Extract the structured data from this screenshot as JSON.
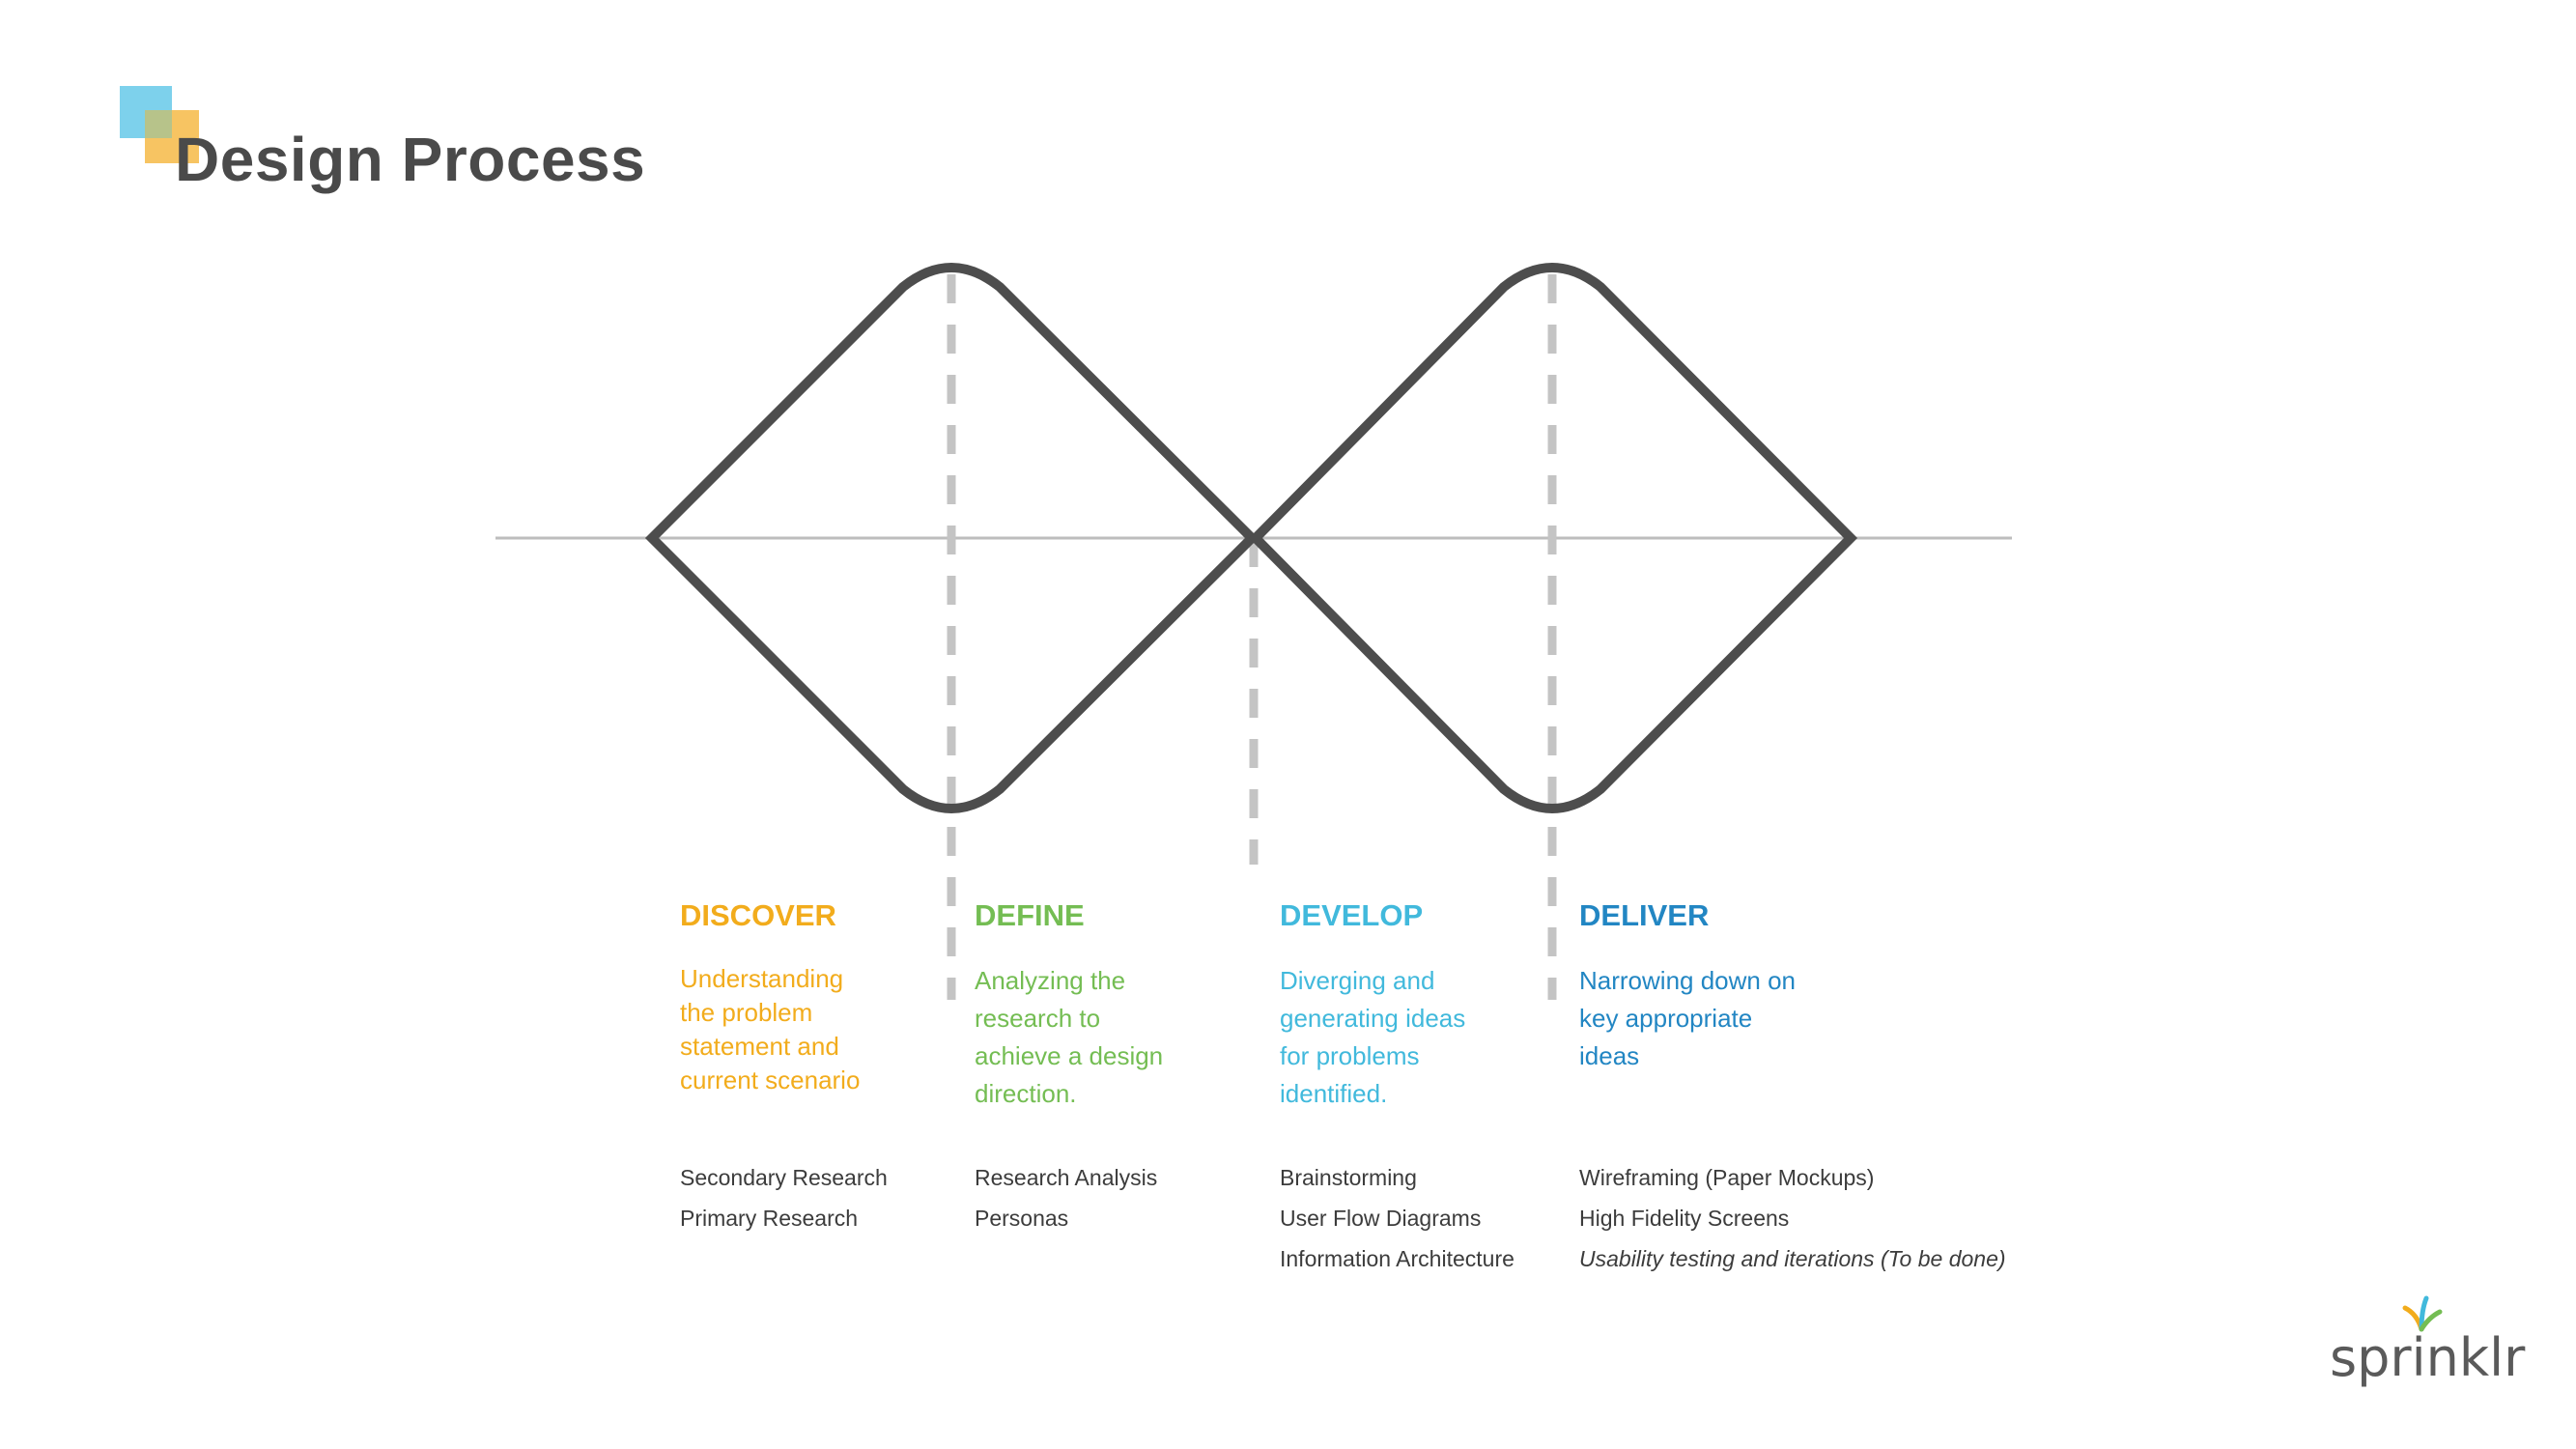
{
  "title": "Design Process",
  "phases": [
    {
      "name": "DISCOVER",
      "color": "#f2ac1c",
      "description": "Understanding the problem statement and current scenario",
      "activities": [
        "Secondary Research",
        "Primary Research"
      ]
    },
    {
      "name": "DEFINE",
      "color": "#74bd53",
      "description": "Analyzing the research to achieve a design direction.",
      "activities": [
        "Research Analysis",
        "Personas"
      ]
    },
    {
      "name": "DEVELOP",
      "color": "#41b9dc",
      "description": "Diverging and generating ideas for problems identified.",
      "activities": [
        "Brainstorming",
        "User Flow Diagrams",
        "Information Architecture"
      ]
    },
    {
      "name": "DELIVER",
      "color": "#2286c3",
      "description": "Narrowing down on key appropriate ideas",
      "activities": [
        "Wireframing (Paper Mockups)",
        "High Fidelity Screens",
        "Usability testing and iterations (To be done)"
      ]
    }
  ],
  "brand": "sprinklr",
  "colors": {
    "title": "#4a4a4a",
    "diamond_stroke": "#4d4d4d",
    "dashed_line": "#c4c4c4",
    "horizon_line": "#bdbdbd",
    "accent_blue": "#7dd1ec",
    "accent_orange": "#f7c15a"
  }
}
